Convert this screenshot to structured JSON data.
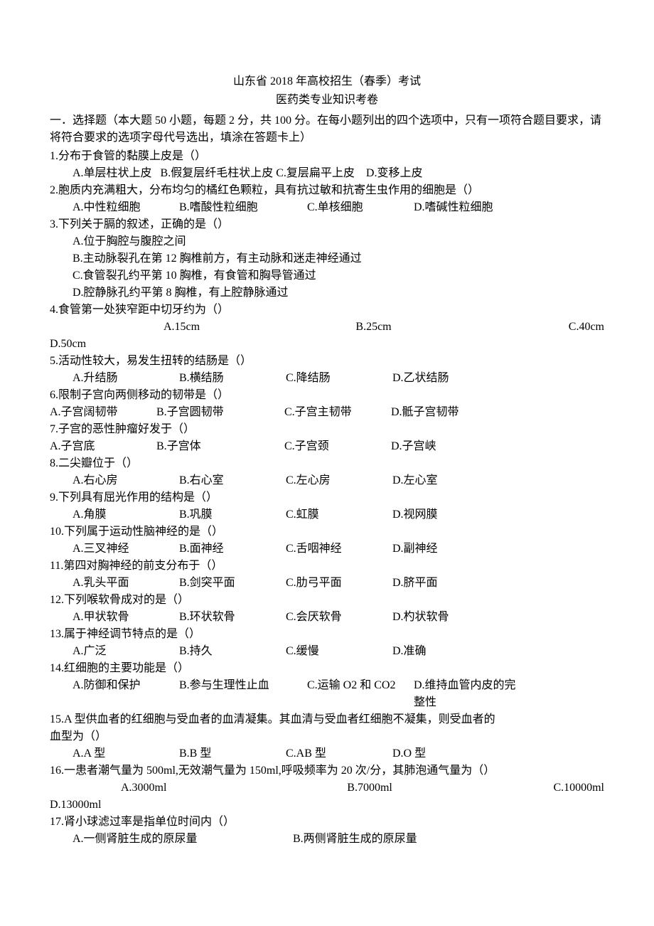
{
  "header": {
    "title": "山东省 2018 年高校招生（春季）考试",
    "subtitle": "医药类专业知识考卷"
  },
  "instructions": "一．选择题（本大题 50 小题，每题 2 分，共 100 分。在每小题列出的四个选项中，只有一项符合题目要求，请将符合要求的选项字母代号选出，填涂在答题卡上）",
  "questions": [
    {
      "q": "1.分布于食管的黏膜上皮是（）",
      "opts": [
        "A.单层柱状上皮",
        "B.假复层纤毛柱状上皮",
        "C.复层扁平上皮",
        "D.变移上皮"
      ],
      "layout": "2"
    },
    {
      "q": "2.胞质内充满粗大，分布均匀的橘红色颗粒，具有抗过敏和抗寄生虫作用的细胞是（）",
      "opts": [
        "A.中性粒细胞",
        "B.嗜酸性粒细胞",
        "C.单核细胞",
        "D.嗜碱性粒细胞"
      ],
      "layout": "4b"
    },
    {
      "q": "3.下列关于膈的叙述，正确的是（）",
      "subs": [
        "A.位于胸腔与腹腔之间",
        "B.主动脉裂孔在第 12 胸椎前方，有主动脉和迷走神经通过",
        "C.食管裂孔约平第 10 胸椎，有食管和胸导管通过",
        "D.腔静脉孔约平第 8 胸椎，有上腔静脉通过"
      ],
      "layout": "multi"
    },
    {
      "q": "4.食管第一处狭窄距中切牙约为（）",
      "opts": [
        "A.15cm",
        "B.25cm",
        "C.40cm"
      ],
      "extra": "D.50cm",
      "layout": "q4"
    },
    {
      "q": "5.活动性较大，易发生扭转的结肠是（）",
      "opts": [
        "A.升结肠",
        "B.横结肠",
        "C.降结肠",
        "D.乙状结肠"
      ],
      "layout": "4"
    },
    {
      "q": "6.限制子宫向两侧移动的韧带是（）",
      "opts": [
        "A.子宫阔韧带",
        "B.子宫圆韧带",
        "C.子宫主韧带",
        "D.骶子宫韧带"
      ],
      "layout": "4c"
    },
    {
      "q": "7.子宫的恶性肿瘤好发于（）",
      "opts": [
        "A.子宫底",
        "B.子宫体",
        "C.子宫颈",
        "D.子宫峡"
      ],
      "layout": "4c"
    },
    {
      "q": "8.二尖瓣位于（）",
      "opts": [
        "A.右心房",
        "B.右心室",
        "C.左心房",
        "D.左心室"
      ],
      "layout": "4"
    },
    {
      "q": "9.下列具有屈光作用的结构是（）",
      "opts": [
        "A.角膜",
        "B.巩膜",
        "C.虹膜",
        "D.视网膜"
      ],
      "layout": "4"
    },
    {
      "q": "10.下列属于运动性脑神经的是（）",
      "opts": [
        "A.三叉神经",
        "B.面神经",
        "C.舌咽神经",
        "D.副神经"
      ],
      "layout": "4"
    },
    {
      "q": "11.第四对胸神经的前支分布于（）",
      "opts": [
        "A.乳头平面",
        "B.剑突平面",
        "C.肋弓平面",
        "D.脐平面"
      ],
      "layout": "4"
    },
    {
      "q": "12.下列喉软骨成对的是（）",
      "opts": [
        "A.甲状软骨",
        "B.环状软骨",
        "C.会厌软骨",
        "D.杓状软骨"
      ],
      "layout": "4"
    },
    {
      "q": "13.属于神经调节特点的是（）",
      "opts": [
        "A.广泛",
        "B.持久",
        "C.缓慢",
        "D.准确"
      ],
      "layout": "4"
    },
    {
      "q": "14.红细胞的主要功能是（）",
      "opts": [
        "A.防御和保护",
        "B.参与生理性止血",
        "C.运输 O2 和 CO2",
        "D.维持血管内皮的完整性"
      ],
      "layout": "4b"
    },
    {
      "q": "15.A 型供血者的红细胞与受血者的血清凝集。其血清与受血者红细胞不凝集，则受血者的血型为（）",
      "opts": [
        "A.A 型",
        "B.B  型",
        "C.AB 型",
        "D.O 型"
      ],
      "layout": "4"
    },
    {
      "q": "16.一患者潮气量为 500ml,无效潮气量为 150ml,呼吸频率为 20 次/分，其肺泡通气量为（）",
      "opts": [
        "A.3000ml",
        "B.7000ml",
        "C.10000ml"
      ],
      "extra": "D.13000ml",
      "layout": "q16"
    },
    {
      "q": "17.肾小球滤过率是指单位时间内（）",
      "opts": [
        "A.一侧肾脏生成的原尿量",
        "B.两侧肾脏生成的原尿量"
      ],
      "layout": "2col"
    }
  ]
}
